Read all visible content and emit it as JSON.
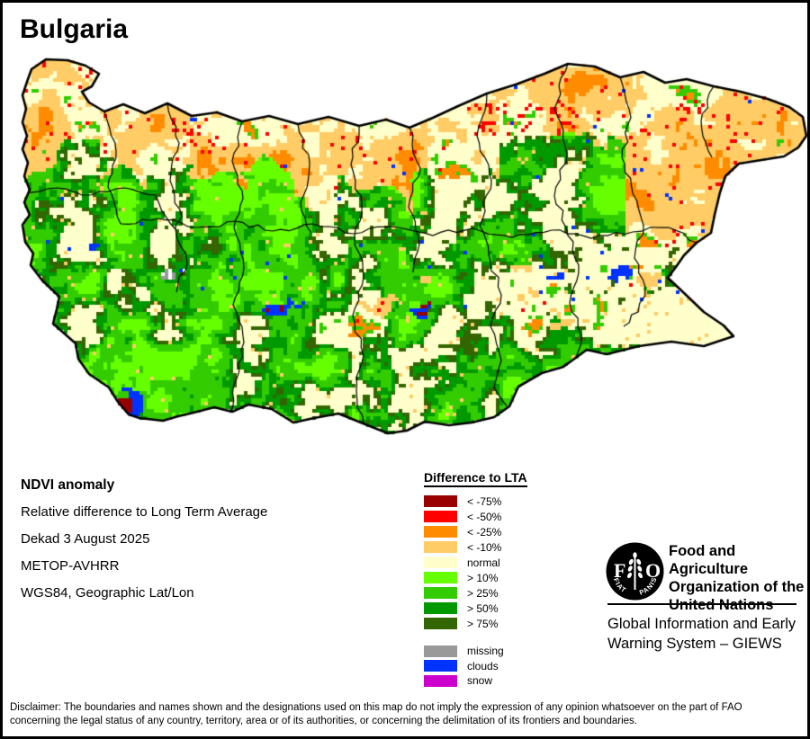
{
  "title": "Bulgaria",
  "info": {
    "heading": "NDVI anomaly",
    "lines": [
      "Relative difference to Long Term Average",
      "Dekad 3 August 2025",
      "METOP-AVHRR",
      "WGS84, Geographic Lat/Lon"
    ]
  },
  "legend": {
    "title": "Difference to LTA",
    "items": [
      {
        "label": "< -75%",
        "color": "#990000"
      },
      {
        "label": "< -50%",
        "color": "#FF0000"
      },
      {
        "label": "< -25%",
        "color": "#FF8C00"
      },
      {
        "label": "< -10%",
        "color": "#FFCC66"
      },
      {
        "label": "normal",
        "color": "#FFFFCC"
      },
      {
        "label": "> 10%",
        "color": "#66FF00"
      },
      {
        "label": "> 25%",
        "color": "#33CC00"
      },
      {
        "label": "> 50%",
        "color": "#009900"
      },
      {
        "label": "> 75%",
        "color": "#336600"
      }
    ],
    "extra_items": [
      {
        "label": "missing",
        "color": "#999999"
      },
      {
        "label": "clouds",
        "color": "#0033FF"
      },
      {
        "label": "snow",
        "color": "#CC00CC"
      }
    ]
  },
  "fao": {
    "motto_left": "FIAT",
    "motto_right": "PANIS",
    "org_lines": [
      "Food and Agriculture",
      "Organization of the",
      "United Nations"
    ],
    "giews_lines": [
      "Global Information and Early",
      "Warning System – GIEWS"
    ]
  },
  "disclaimer": {
    "line1": "Disclaimer: The boundaries and names shown and the designations used on this map do not imply the expression of any opinion whatsoever on the part of FAO",
    "line2": "concerning the legal status of any country, territory, area or of its authorities, or concerning the delimitation of its frontiers and boundaries."
  },
  "map_extra_colors": {
    "boundary": "#000000",
    "sea": "#FFFFFF",
    "missing_patch": "#999999"
  }
}
